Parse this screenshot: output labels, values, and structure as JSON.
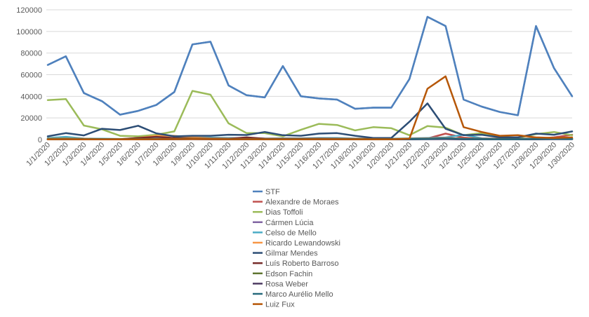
{
  "chart_data": {
    "type": "line",
    "title": "",
    "xlabel": "",
    "ylabel": "",
    "ylim": [
      0,
      120000
    ],
    "yticks": [
      0,
      20000,
      40000,
      60000,
      80000,
      100000,
      120000
    ],
    "ytick_labels": [
      "0",
      "20000",
      "40000",
      "60000",
      "80000",
      "100000",
      "120000"
    ],
    "grid": "horizontal",
    "legend_position": "bottom",
    "categories": [
      "1/1/2020",
      "1/2/2020",
      "1/3/2020",
      "1/4/2020",
      "1/5/2020",
      "1/6/2020",
      "1/7/2020",
      "1/8/2020",
      "1/9/2020",
      "1/10/2020",
      "1/11/2020",
      "1/12/2020",
      "1/13/2020",
      "1/14/2020",
      "1/15/2020",
      "1/16/2020",
      "1/17/2020",
      "1/18/2020",
      "1/19/2020",
      "1/20/2020",
      "1/21/2020",
      "1/22/2020",
      "1/23/2020",
      "1/24/2020",
      "1/25/2020",
      "1/26/2020",
      "1/27/2020",
      "1/28/2020",
      "1/29/2020",
      "1/30/2020"
    ],
    "series": [
      {
        "name": "STF",
        "color": "#4F81BD",
        "values": [
          69000,
          77000,
          43000,
          35500,
          23000,
          26500,
          32000,
          44000,
          88000,
          90500,
          50000,
          41000,
          39000,
          68000,
          40000,
          38000,
          37000,
          28500,
          29500,
          29500,
          56000,
          113500,
          105000,
          37000,
          30500,
          25500,
          22500,
          105000,
          66000,
          40000
        ]
      },
      {
        "name": "Alexandre de Moraes",
        "color": "#C0504D",
        "values": [
          500,
          400,
          300,
          300,
          200,
          300,
          400,
          600,
          700,
          600,
          500,
          500,
          400,
          400,
          400,
          500,
          500,
          400,
          400,
          400,
          800,
          1000,
          5500,
          1800,
          600,
          500,
          400,
          900,
          2000,
          4500
        ]
      },
      {
        "name": "Dias Toffoli",
        "color": "#9BBB59",
        "values": [
          36500,
          37500,
          13000,
          9500,
          3500,
          3000,
          4500,
          7500,
          45000,
          41500,
          15000,
          6000,
          6000,
          3000,
          9000,
          14500,
          13500,
          8500,
          11500,
          10500,
          4000,
          12500,
          11000,
          4000,
          6000,
          3000,
          1500,
          5000,
          7000,
          4000
        ]
      },
      {
        "name": "Cármen Lúcia",
        "color": "#8064A2",
        "values": [
          300,
          300,
          200,
          200,
          150,
          200,
          250,
          300,
          400,
          350,
          300,
          300,
          250,
          250,
          250,
          300,
          300,
          250,
          250,
          250,
          300,
          400,
          500,
          300,
          250,
          250,
          200,
          300,
          400,
          400
        ]
      },
      {
        "name": "Celso de Mello",
        "color": "#4BACC6",
        "values": [
          1500,
          2500,
          1000,
          800,
          600,
          700,
          1200,
          1500,
          2000,
          1800,
          1400,
          1200,
          1000,
          1100,
          1200,
          1500,
          1400,
          1000,
          1000,
          900,
          1100,
          1500,
          2000,
          4500,
          1200,
          800,
          700,
          1200,
          1000,
          900
        ]
      },
      {
        "name": "Ricardo Lewandowski",
        "color": "#F79646",
        "values": [
          800,
          1000,
          700,
          500,
          400,
          1500,
          3500,
          3500,
          2000,
          1200,
          900,
          800,
          700,
          800,
          800,
          900,
          800,
          700,
          700,
          600,
          700,
          1000,
          1500,
          1000,
          800,
          700,
          600,
          900,
          1200,
          1000
        ]
      },
      {
        "name": "Gilmar Mendes",
        "color": "#2C4D75",
        "values": [
          3000,
          6000,
          3800,
          10000,
          8800,
          12800,
          5800,
          3000,
          3500,
          3500,
          4500,
          4200,
          7000,
          4000,
          3500,
          5500,
          6000,
          3500,
          1500,
          1500,
          16500,
          33500,
          10000,
          4000,
          4500,
          2000,
          2000,
          5500,
          4500,
          7500
        ]
      },
      {
        "name": "Luís Roberto Barroso",
        "color": "#772C2A",
        "values": [
          400,
          500,
          600,
          400,
          300,
          1500,
          2500,
          1500,
          1000,
          800,
          700,
          2000,
          800,
          700,
          700,
          800,
          700,
          600,
          600,
          500,
          600,
          800,
          1200,
          800,
          700,
          600,
          500,
          700,
          800,
          700
        ]
      },
      {
        "name": "Edson Fachin",
        "color": "#5F7530",
        "values": [
          600,
          700,
          500,
          400,
          300,
          400,
          500,
          600,
          700,
          600,
          500,
          500,
          400,
          400,
          400,
          500,
          500,
          400,
          400,
          400,
          500,
          600,
          800,
          500,
          400,
          400,
          300,
          500,
          600,
          600
        ]
      },
      {
        "name": "Rosa Weber",
        "color": "#4D3B62",
        "values": [
          200,
          250,
          200,
          150,
          100,
          150,
          200,
          250,
          300,
          250,
          200,
          200,
          150,
          150,
          150,
          200,
          200,
          150,
          150,
          150,
          200,
          300,
          400,
          200,
          150,
          150,
          150,
          200,
          300,
          300
        ]
      },
      {
        "name": "Marco Aurélio Mello",
        "color": "#276A7C",
        "values": [
          300,
          400,
          300,
          300,
          200,
          300,
          400,
          500,
          600,
          500,
          400,
          400,
          300,
          300,
          300,
          400,
          400,
          300,
          300,
          300,
          500,
          600,
          1200,
          600,
          400,
          300,
          300,
          500,
          600,
          500
        ]
      },
      {
        "name": "Luiz Fux",
        "color": "#B65708",
        "values": [
          200,
          300,
          200,
          200,
          150,
          200,
          300,
          400,
          500,
          400,
          300,
          300,
          250,
          250,
          250,
          300,
          300,
          250,
          250,
          250,
          800,
          47000,
          58500,
          11500,
          7000,
          3500,
          4000,
          2000,
          1500,
          2000
        ]
      }
    ]
  }
}
